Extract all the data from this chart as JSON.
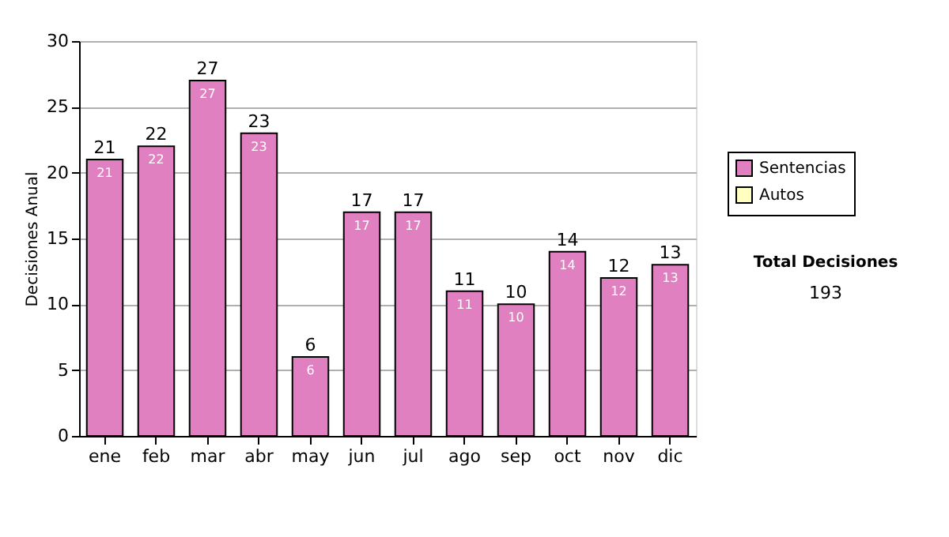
{
  "chart_data": {
    "type": "bar",
    "stacked": true,
    "ylabel": "Decisiones Anual",
    "categories": [
      "ene",
      "feb",
      "mar",
      "abr",
      "may",
      "jun",
      "jul",
      "ago",
      "sep",
      "oct",
      "nov",
      "dic"
    ],
    "series": [
      {
        "name": "Sentencias",
        "color": "#e080c0",
        "values": [
          21,
          22,
          27,
          23,
          6,
          17,
          17,
          11,
          10,
          14,
          12,
          13
        ],
        "value_labels": [
          "21",
          "22",
          "27",
          "23",
          "6",
          "17",
          "17",
          "11",
          "10",
          "14",
          "12",
          "13"
        ]
      },
      {
        "name": "Autos",
        "color": "#ffffc0",
        "values": [
          0,
          0,
          0,
          0,
          0,
          0,
          0,
          0,
          0,
          0,
          0,
          0
        ]
      }
    ],
    "totals": [
      "21",
      "22",
      "27",
      "23",
      "6",
      "17",
      "17",
      "11",
      "10",
      "14",
      "12",
      "13"
    ],
    "ylim": [
      0,
      30
    ],
    "yticks": [
      0,
      5,
      10,
      15,
      20,
      25,
      30
    ],
    "grid": "y",
    "legend": "right",
    "annotations": [
      "Total Decisiones",
      "193"
    ]
  }
}
